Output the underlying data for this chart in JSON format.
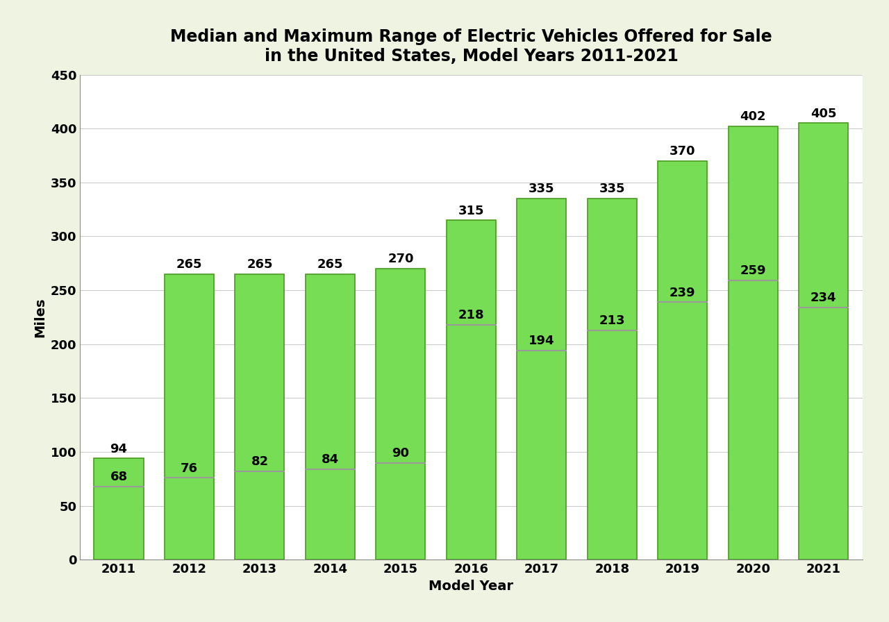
{
  "years": [
    "2011",
    "2012",
    "2013",
    "2014",
    "2015",
    "2016",
    "2017",
    "2018",
    "2019",
    "2020",
    "2021"
  ],
  "max_range": [
    94,
    265,
    265,
    265,
    270,
    315,
    335,
    335,
    370,
    402,
    405
  ],
  "median_range": [
    68,
    76,
    82,
    84,
    90,
    218,
    194,
    213,
    239,
    259,
    234
  ],
  "bar_color": "#77DD55",
  "bar_edge_color": "#4A9A20",
  "median_line_color": "#999999",
  "background_color": "#EEF3E2",
  "plot_bg_color": "#FFFFFF",
  "title_line1": "Median and Maximum Range of Electric Vehicles Offered for Sale",
  "title_line2": "in the United States, Model Years 2011-2021",
  "xlabel": "Model Year",
  "ylabel": "Miles",
  "ylim": [
    0,
    450
  ],
  "yticks": [
    0,
    50,
    100,
    150,
    200,
    250,
    300,
    350,
    400,
    450
  ],
  "title_fontsize": 17,
  "label_fontsize": 14,
  "tick_fontsize": 13,
  "annotation_fontsize": 13,
  "bar_width": 0.7
}
